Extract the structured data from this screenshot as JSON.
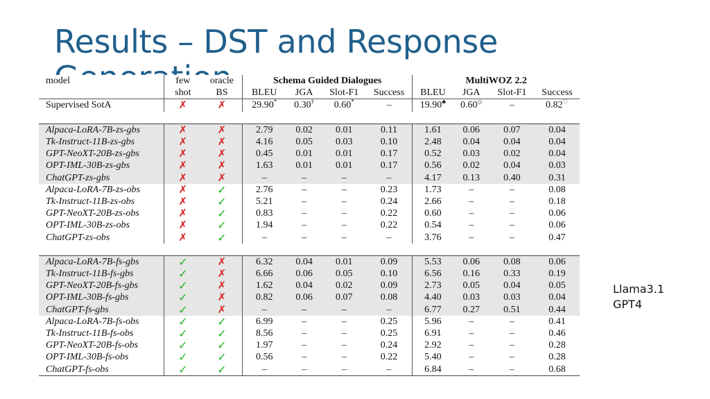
{
  "title": "Results – DST and Response Generation",
  "title_line1": "Results – DST and Response",
  "title_line2": "Generation",
  "table": {
    "header": {
      "model": "model",
      "few": "few",
      "shot": "shot",
      "oracle": "oracle",
      "bs": "BS",
      "sgd_group": "Schema Guided Dialogues",
      "mwoz_group": "MultiWOZ 2.2",
      "cols": [
        "BLEU",
        "JGA",
        "Slot-F1",
        "Success",
        "BLEU",
        "JGA",
        "Slot-F1",
        "Success"
      ]
    },
    "supervised": {
      "model": "Supervised SotA",
      "few": "✗",
      "oracle": "✗",
      "values": [
        {
          "v": "29.90",
          "s": "*"
        },
        {
          "v": "0.30",
          "s": "†"
        },
        {
          "v": "0.60",
          "s": "*"
        },
        {
          "v": "–",
          "s": ""
        },
        {
          "v": "19.90",
          "s": "♣"
        },
        {
          "v": "0.60",
          "s": "◇"
        },
        {
          "v": "–",
          "s": ""
        },
        {
          "v": "0.82",
          "s": "♡"
        }
      ]
    },
    "zs_gbs": [
      {
        "model": "Alpaca-LoRA-7B-zs-gbs",
        "few": "✗",
        "oracle": "✗",
        "values": [
          "2.79",
          "0.02",
          "0.01",
          "0.11",
          "1.61",
          "0.06",
          "0.07",
          "0.04"
        ]
      },
      {
        "model": "Tk-Instruct-11B-zs-gbs",
        "few": "✗",
        "oracle": "✗",
        "values": [
          "4.16",
          "0.05",
          "0.03",
          "0.10",
          "2.48",
          "0.04",
          "0.04",
          "0.04"
        ]
      },
      {
        "model": "GPT-NeoXT-20B-zs-gbs",
        "few": "✗",
        "oracle": "✗",
        "values": [
          "0.45",
          "0.01",
          "0.01",
          "0.17",
          "0.52",
          "0.03",
          "0.02",
          "0.04"
        ]
      },
      {
        "model": "OPT-IML-30B-zs-gbs",
        "few": "✗",
        "oracle": "✗",
        "values": [
          "1.63",
          "0.01",
          "0.01",
          "0.17",
          "0.56",
          "0.02",
          "0.04",
          "0.03"
        ]
      },
      {
        "model": "ChatGPT-zs-gbs",
        "few": "✗",
        "oracle": "✗",
        "values": [
          "–",
          "–",
          "–",
          "–",
          "4.17",
          "0.13",
          "0.40",
          "0.31"
        ]
      }
    ],
    "zs_obs": [
      {
        "model": "Alpaca-LoRA-7B-zs-obs",
        "few": "✗",
        "oracle": "✓",
        "values": [
          "2.76",
          "–",
          "–",
          "0.23",
          "1.73",
          "–",
          "–",
          "0.08"
        ]
      },
      {
        "model": "Tk-Instruct-11B-zs-obs",
        "few": "✗",
        "oracle": "✓",
        "values": [
          "5.21",
          "–",
          "–",
          "0.24",
          "2.66",
          "–",
          "–",
          "0.18"
        ]
      },
      {
        "model": "GPT-NeoXT-20B-zs-obs",
        "few": "✗",
        "oracle": "✓",
        "values": [
          "0.83",
          "–",
          "–",
          "0.22",
          "0.60",
          "–",
          "–",
          "0.06"
        ]
      },
      {
        "model": "OPT-IML-30B-zs-obs",
        "few": "✗",
        "oracle": "✓",
        "values": [
          "1.94",
          "–",
          "–",
          "0.22",
          "0.54",
          "–",
          "–",
          "0.06"
        ]
      },
      {
        "model": "ChatGPT-zs-obs",
        "few": "✗",
        "oracle": "✓",
        "values": [
          "–",
          "–",
          "–",
          "–",
          "3.76",
          "–",
          "–",
          "0.47"
        ]
      }
    ],
    "fs_gbs": [
      {
        "model": "Alpaca-LoRA-7B-fs-gbs",
        "few": "✓",
        "oracle": "✗",
        "values": [
          "6.32",
          "0.04",
          "0.01",
          "0.09",
          "5.53",
          "0.06",
          "0.08",
          "0.06"
        ]
      },
      {
        "model": "Tk-Instruct-11B-fs-gbs",
        "few": "✓",
        "oracle": "✗",
        "values": [
          "6.66",
          "0.06",
          "0.05",
          "0.10",
          "6.56",
          "0.16",
          "0.33",
          "0.19"
        ]
      },
      {
        "model": "GPT-NeoXT-20B-fs-gbs",
        "few": "✓",
        "oracle": "✗",
        "values": [
          "1.62",
          "0.04",
          "0.02",
          "0.09",
          "2.73",
          "0.05",
          "0.04",
          "0.05"
        ]
      },
      {
        "model": "OPT-IML-30B-fs-gbs",
        "few": "✓",
        "oracle": "✗",
        "values": [
          "0.82",
          "0.06",
          "0.07",
          "0.08",
          "4.40",
          "0.03",
          "0.03",
          "0.04"
        ]
      },
      {
        "model": "ChatGPT-fs-gbs",
        "few": "✓",
        "oracle": "✗",
        "values": [
          "–",
          "–",
          "–",
          "–",
          "6.77",
          "0.27",
          "0.51",
          "0.44"
        ]
      }
    ],
    "fs_obs": [
      {
        "model": "Alpaca-LoRA-7B-fs-obs",
        "few": "✓",
        "oracle": "✓",
        "values": [
          "6.99",
          "–",
          "–",
          "0.25",
          "5.96",
          "–",
          "–",
          "0.41"
        ]
      },
      {
        "model": "Tk-Instruct-11B-fs-obs",
        "few": "✓",
        "oracle": "✓",
        "values": [
          "8.56",
          "–",
          "–",
          "0.25",
          "6.91",
          "–",
          "–",
          "0.46"
        ]
      },
      {
        "model": "GPT-NeoXT-20B-fs-obs",
        "few": "✓",
        "oracle": "✓",
        "values": [
          "1.97",
          "–",
          "–",
          "0.24",
          "2.92",
          "–",
          "–",
          "0.28"
        ]
      },
      {
        "model": "OPT-IML-30B-fs-obs",
        "few": "✓",
        "oracle": "✓",
        "values": [
          "0.56",
          "–",
          "–",
          "0.22",
          "5.40",
          "–",
          "–",
          "0.28"
        ]
      },
      {
        "model": "ChatGPT-fs-obs",
        "few": "✓",
        "oracle": "✓",
        "values": [
          "–",
          "–",
          "–",
          "–",
          "6.84",
          "–",
          "–",
          "0.68"
        ]
      }
    ],
    "bold_cells": {
      "fs_gbs": [
        [
          3,
          1
        ],
        [
          3,
          2
        ],
        [
          4,
          5
        ],
        [
          4,
          6
        ]
      ],
      "fs_obs": [
        [
          0,
          3
        ],
        [
          1,
          0
        ],
        [
          1,
          3
        ],
        [
          1,
          4
        ],
        [
          4,
          7
        ]
      ]
    }
  },
  "note": {
    "line1": "Llama3.1",
    "line2": "GPT4"
  },
  "colors": {
    "title": "#1f5f8b",
    "cross": "#d42020",
    "check": "#1fb21f",
    "shade": "#e6e6e6"
  }
}
